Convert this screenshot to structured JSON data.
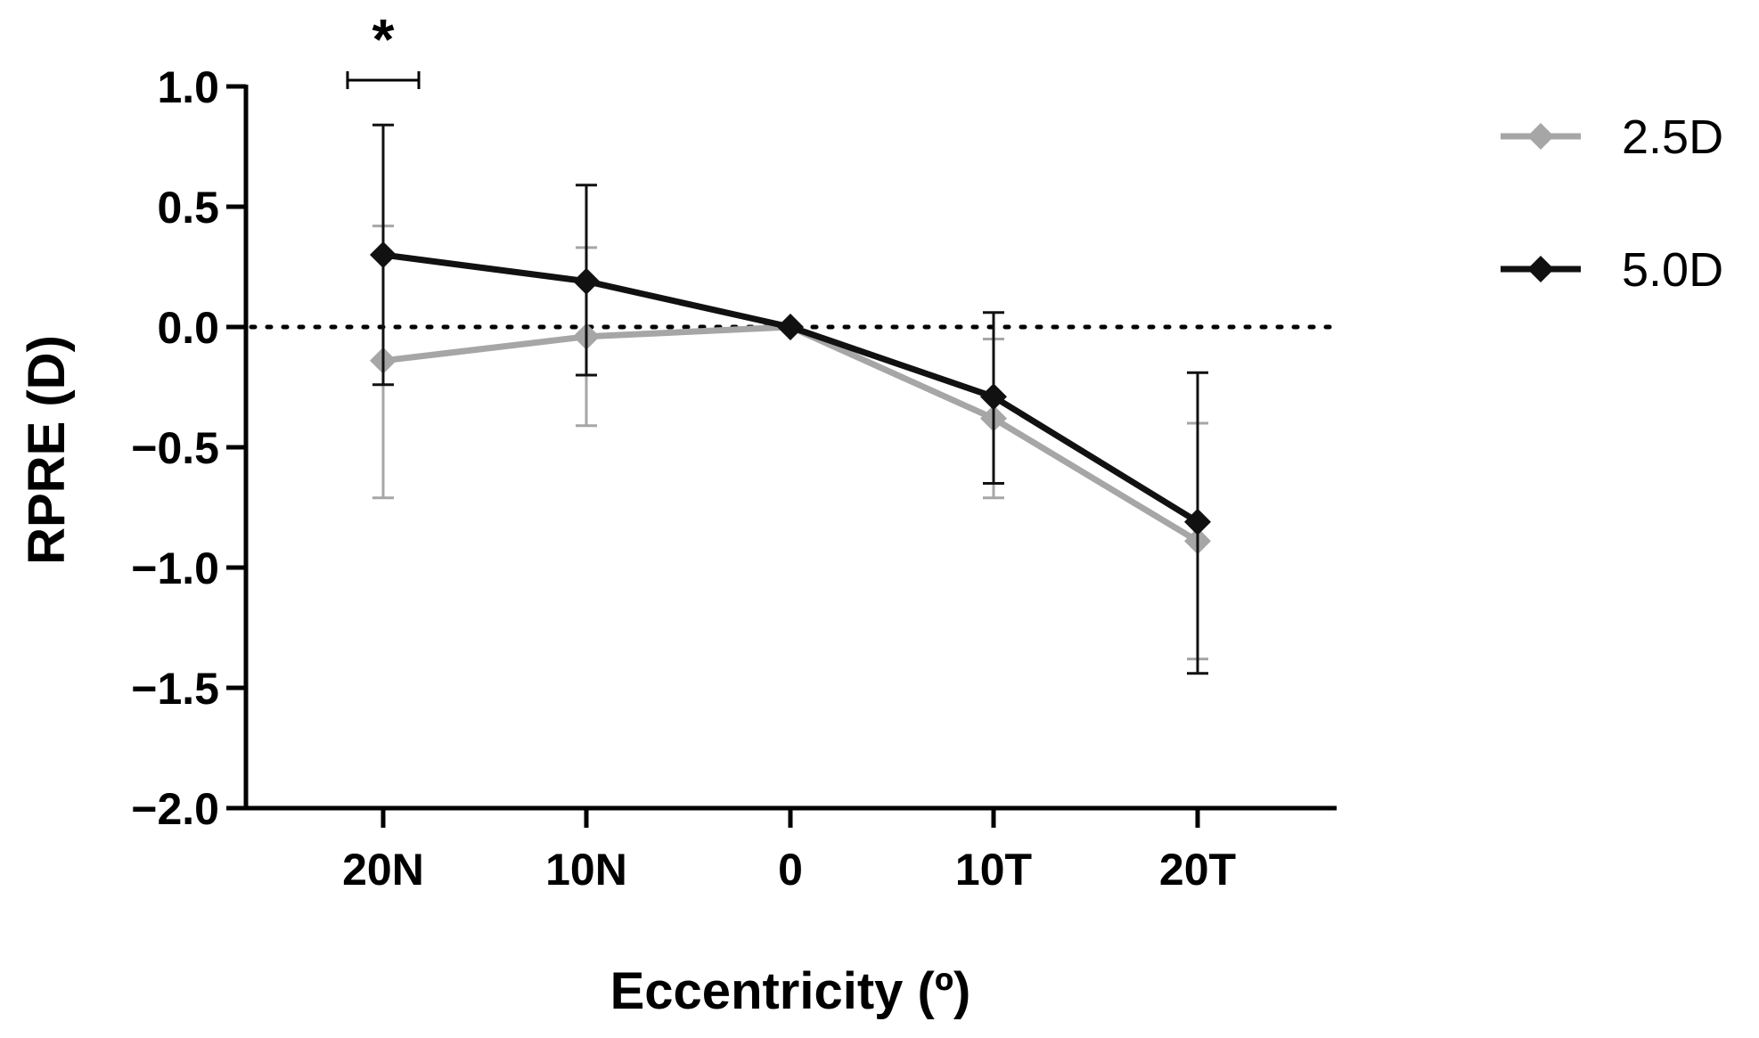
{
  "chart_data": {
    "type": "line",
    "title": "",
    "xlabel": "Eccentricity (º)",
    "ylabel": "RPRE (D)",
    "categories": [
      "20N",
      "10N",
      "0",
      "10T",
      "20T"
    ],
    "ylim": [
      -2.0,
      1.0
    ],
    "yticks": [
      1.0,
      0.5,
      0.0,
      -0.5,
      -1.0,
      -1.5,
      -2.0
    ],
    "ytick_labels": [
      "1.0",
      "0.5",
      "0.0",
      "−0.5",
      "−1.0",
      "−1.5",
      "−2.0"
    ],
    "reference_line": {
      "y": 0.0,
      "style": "dotted"
    },
    "series": [
      {
        "name": "2.5D",
        "color": "#a6a6a6",
        "marker": "diamond",
        "values": [
          -0.14,
          -0.04,
          0.0,
          -0.38,
          -0.89
        ],
        "error_lower": [
          -0.71,
          -0.41,
          0.0,
          -0.71,
          -1.38
        ],
        "error_upper": [
          0.42,
          0.33,
          0.0,
          -0.05,
          -0.4
        ]
      },
      {
        "name": "5.0D",
        "color": "#111111",
        "marker": "diamond",
        "values": [
          0.3,
          0.19,
          0.0,
          -0.29,
          -0.81
        ],
        "error_lower": [
          -0.24,
          -0.2,
          0.0,
          -0.65,
          -1.44
        ],
        "error_upper": [
          0.84,
          0.59,
          0.0,
          0.06,
          -0.19
        ]
      }
    ],
    "annotations": [
      {
        "text": "*",
        "category": "20N",
        "meaning": "significant difference"
      }
    ],
    "legend": {
      "position": "right",
      "entries": [
        "2.5D",
        "5.0D"
      ]
    }
  }
}
